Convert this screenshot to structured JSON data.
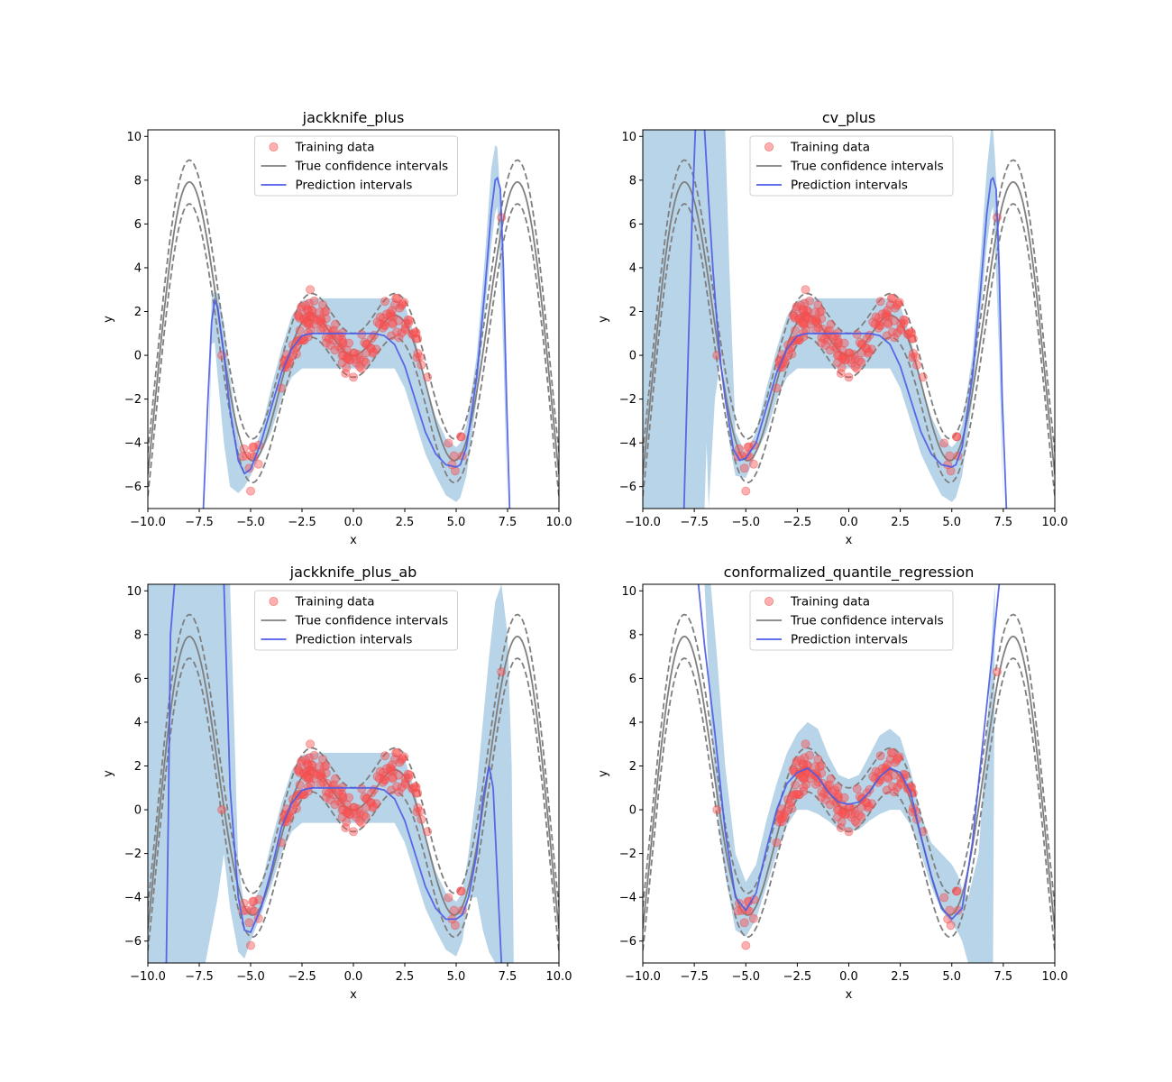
{
  "colors": {
    "band": "#b8d4e8",
    "true_line": "#7f7f7f",
    "prediction_line": "#4c5be6",
    "points": "#ff5050",
    "points_edge": "#e05050"
  },
  "legend_entries": [
    "Training data",
    "True confidence intervals",
    "Prediction intervals"
  ],
  "chart_data": [
    {
      "type": "line",
      "title": "jackknife_plus",
      "xlabel": "x",
      "ylabel": "y",
      "xlim": [
        -10,
        10
      ],
      "ylim": [
        -7,
        10.3
      ],
      "xticks": [
        "−10.0",
        "−7.5",
        "−5.0",
        "−2.5",
        "0.0",
        "2.5",
        "5.0",
        "7.5",
        "10.0"
      ],
      "yticks": [
        "−6",
        "−4",
        "−2",
        "0",
        "2",
        "4",
        "6",
        "8",
        "10"
      ],
      "legend_position": "upper-center",
      "series": [
        {
          "name": "Training data",
          "kind": "scatter",
          "x_range": [
            -6.4,
            7.3
          ],
          "outliers": [
            [
              -5.0,
              -6.2
            ],
            [
              -6.4,
              0.0
            ],
            [
              7.2,
              6.3
            ],
            [
              -2.1,
              3.0
            ],
            [
              0.0,
              -1.0
            ]
          ]
        },
        {
          "name": "True confidence intervals",
          "kind": "line",
          "function": "x*sin(x)",
          "offsets": [
            -1,
            0,
            1
          ]
        },
        {
          "name": "Prediction intervals",
          "kind": "line",
          "x": [
            -7.3,
            -7.1,
            -6.9,
            -6.75,
            -6.6,
            -6.3,
            -6.0,
            -5.6,
            -5.3,
            -5.0,
            -4.5,
            -4.0,
            -3.5,
            -3.0,
            -2.5,
            -2.0,
            -1.0,
            0.0,
            1.0,
            1.5,
            2.0,
            2.5,
            3.0,
            3.5,
            4.0,
            4.5,
            5.0,
            5.2,
            5.5,
            6.0,
            6.4,
            6.7,
            6.9,
            7.0,
            7.15,
            7.3,
            7.45,
            7.6
          ],
          "y": [
            -7.0,
            -2.5,
            1.5,
            2.5,
            2.2,
            0.0,
            -2.5,
            -4.8,
            -5.4,
            -5.2,
            -4.0,
            -2.4,
            -0.8,
            0.3,
            0.9,
            1.0,
            1.0,
            1.0,
            1.0,
            0.9,
            0.5,
            -0.5,
            -2.0,
            -3.5,
            -4.5,
            -5.0,
            -5.1,
            -5.0,
            -4.2,
            -1.0,
            3.0,
            6.5,
            8.0,
            8.1,
            7.6,
            4.0,
            -2.0,
            -7.0
          ]
        },
        {
          "name": "band",
          "kind": "area",
          "x": [
            -7.1,
            -6.9,
            -6.75,
            -6.6,
            -6.3,
            -6.0,
            -5.6,
            -5.3,
            -5.0,
            -4.5,
            -4.0,
            -3.5,
            -3.0,
            -2.5,
            -2.0,
            -1.0,
            0.0,
            1.0,
            2.0,
            2.5,
            3.0,
            3.5,
            4.0,
            4.5,
            5.0,
            5.2,
            5.5,
            6.0,
            6.4,
            6.7,
            6.9,
            7.0,
            7.1,
            7.3,
            7.5
          ],
          "lower": [
            -7.0,
            0.5,
            0.6,
            -1.0,
            -4.0,
            -6.0,
            -6.3,
            -6.0,
            -5.5,
            -4.5,
            -3.5,
            -2.0,
            -1.0,
            -0.6,
            -0.6,
            -0.6,
            -0.6,
            -0.6,
            -0.6,
            -1.5,
            -3.0,
            -4.5,
            -5.5,
            -6.4,
            -6.7,
            -6.5,
            -5.5,
            -2.0,
            2.0,
            5.0,
            6.5,
            6.8,
            5.0,
            0.0,
            -7.0
          ],
          "upper": [
            -7.0,
            2.6,
            3.0,
            2.8,
            1.5,
            -1.0,
            -3.8,
            -4.8,
            -4.8,
            -3.5,
            -1.5,
            0.3,
            1.8,
            2.5,
            2.6,
            2.6,
            2.6,
            2.6,
            2.6,
            2.3,
            0.8,
            -1.2,
            -2.8,
            -3.8,
            -4.2,
            -4.0,
            -3.2,
            0.0,
            4.5,
            8.5,
            9.6,
            9.5,
            8.0,
            5.0,
            -7.0
          ]
        }
      ]
    },
    {
      "type": "line",
      "title": "cv_plus",
      "xlabel": "x",
      "ylabel": "y",
      "xlim": [
        -10,
        10
      ],
      "ylim": [
        -7,
        10.3
      ],
      "xticks": [
        "−10.0",
        "−7.5",
        "−5.0",
        "−2.5",
        "0.0",
        "2.5",
        "5.0",
        "7.5",
        "10.0"
      ],
      "yticks": [
        "−6",
        "−4",
        "−2",
        "0",
        "2",
        "4",
        "6",
        "8",
        "10"
      ],
      "legend_position": "upper-center",
      "series": [
        {
          "name": "Training data",
          "kind": "scatter",
          "x_range": [
            -6.4,
            7.3
          ]
        },
        {
          "name": "True confidence intervals",
          "kind": "line",
          "function": "x*sin(x)",
          "offsets": [
            -1,
            0,
            1
          ]
        },
        {
          "name": "Prediction intervals",
          "kind": "line",
          "note_segments": 2,
          "x": [
            -8.0,
            -7.8,
            -7.6,
            -7.45,
            -7.3,
            -7.0,
            -6.8,
            -6.6,
            -6.4,
            -6.2,
            -6.0,
            -5.6,
            -5.3,
            -5.0,
            -4.5,
            -4.0,
            -3.5,
            -3.0,
            -2.5,
            -2.0,
            -1.0,
            0.0,
            1.0,
            1.5,
            2.0,
            2.5,
            3.0,
            3.5,
            4.0,
            4.5,
            5.0,
            5.2,
            5.5,
            6.0,
            6.4,
            6.7,
            6.9,
            7.0,
            7.15,
            7.3,
            7.45,
            7.65
          ],
          "y": [
            -7.0,
            0.0,
            6.5,
            10.3,
            null,
            10.3,
            7.0,
            4.0,
            1.5,
            -0.5,
            -2.0,
            -4.3,
            -4.8,
            -4.7,
            -4.0,
            -2.4,
            -0.8,
            0.3,
            0.9,
            1.0,
            1.0,
            1.0,
            1.0,
            0.9,
            0.5,
            -0.5,
            -2.0,
            -3.5,
            -4.5,
            -5.0,
            -5.1,
            -5.0,
            -4.2,
            -1.0,
            3.0,
            6.5,
            8.0,
            8.1,
            7.6,
            4.0,
            -2.0,
            -7.0
          ]
        },
        {
          "name": "band",
          "kind": "area",
          "x": [
            -10.0,
            -9.0,
            -8.5,
            -8.0,
            -7.5,
            -7.0,
            -6.9,
            -6.8,
            -6.5,
            -6.2,
            -6.0,
            -5.8,
            -5.5,
            -5.0,
            -4.5,
            -4.0,
            -3.5,
            -3.0,
            -2.5,
            -2.0,
            -1.0,
            0.0,
            1.0,
            2.0,
            2.5,
            3.0,
            3.5,
            4.0,
            4.5,
            5.0,
            5.2,
            5.5,
            6.0,
            6.4,
            6.7,
            6.9,
            7.0,
            7.1,
            7.3,
            7.5
          ],
          "lower": [
            -7.0,
            -7.0,
            -7.0,
            -7.0,
            -7.0,
            -7.0,
            -4.0,
            -7.0,
            -2.0,
            0.0,
            -1.5,
            -4.0,
            -5.5,
            -5.6,
            -4.5,
            -3.5,
            -2.0,
            -1.0,
            -0.6,
            -0.6,
            -0.6,
            -0.6,
            -0.6,
            -0.6,
            -1.5,
            -3.0,
            -4.5,
            -5.5,
            -6.4,
            -6.7,
            -6.5,
            -5.5,
            -2.0,
            2.0,
            5.0,
            6.5,
            6.8,
            5.0,
            0.0,
            -7.0
          ],
          "upper": [
            10.3,
            10.3,
            10.3,
            10.3,
            10.3,
            10.3,
            10.3,
            10.3,
            10.3,
            10.3,
            10.3,
            4.0,
            -3.5,
            -4.5,
            -3.5,
            -1.5,
            0.3,
            1.8,
            2.5,
            2.6,
            2.6,
            2.6,
            2.6,
            2.6,
            2.3,
            0.8,
            -1.2,
            -2.8,
            -3.8,
            -4.2,
            -4.0,
            -3.2,
            0.0,
            4.5,
            8.5,
            10.3,
            10.3,
            9.0,
            5.5,
            -7.0
          ]
        }
      ]
    },
    {
      "type": "line",
      "title": "jackknife_plus_ab",
      "xlabel": "x",
      "ylabel": "y",
      "xlim": [
        -10,
        10
      ],
      "ylim": [
        -7,
        10.3
      ],
      "xticks": [
        "−10.0",
        "−7.5",
        "−5.0",
        "−2.5",
        "0.0",
        "2.5",
        "5.0",
        "7.5",
        "10.0"
      ],
      "yticks": [
        "−6",
        "−4",
        "−2",
        "0",
        "2",
        "4",
        "6",
        "8",
        "10"
      ],
      "legend_position": "upper-center",
      "series": [
        {
          "name": "Training data",
          "kind": "scatter",
          "x_range": [
            -6.4,
            7.3
          ]
        },
        {
          "name": "True confidence intervals",
          "kind": "line",
          "function": "x*sin(x)",
          "offsets": [
            -1,
            0,
            1
          ]
        },
        {
          "name": "Prediction intervals",
          "kind": "line",
          "x": [
            -9.1,
            -9.0,
            -8.9,
            -8.7,
            null,
            -6.3,
            -6.0,
            -5.6,
            -5.3,
            -5.0,
            -4.5,
            -4.0,
            -3.5,
            -3.0,
            -2.5,
            -2.0,
            -1.0,
            0.0,
            1.0,
            1.5,
            2.0,
            2.5,
            3.0,
            3.5,
            4.0,
            4.5,
            5.0,
            5.3,
            5.6,
            6.0,
            6.3,
            6.6,
            6.8,
            7.0,
            7.2
          ],
          "y": [
            -7.0,
            0.0,
            8.0,
            10.3,
            null,
            10.3,
            1.0,
            -4.0,
            -5.5,
            -5.6,
            -4.5,
            -2.8,
            -0.8,
            0.3,
            0.9,
            1.0,
            1.0,
            1.0,
            1.0,
            0.9,
            0.5,
            -0.5,
            -2.0,
            -3.5,
            -4.5,
            -5.0,
            -5.0,
            -4.8,
            -4.0,
            -2.0,
            0.5,
            2.0,
            1.0,
            -3.0,
            -7.0
          ]
        },
        {
          "name": "band",
          "kind": "area",
          "x": [
            -10.0,
            -9.2,
            -9.0,
            -8.5,
            -8.0,
            -7.5,
            -7.2,
            -7.0,
            -6.6,
            -6.3,
            -6.0,
            -5.6,
            -5.3,
            -5.0,
            -4.5,
            -4.0,
            -3.5,
            -3.0,
            -2.5,
            -2.0,
            -1.0,
            0.0,
            1.0,
            2.0,
            2.5,
            3.0,
            3.5,
            4.0,
            4.5,
            5.0,
            5.3,
            5.6,
            6.0,
            6.3,
            6.6,
            6.9,
            7.2,
            7.5,
            7.7,
            7.8
          ],
          "lower": [
            -7.0,
            -7.0,
            -7.0,
            -7.0,
            -7.0,
            -7.0,
            -7.0,
            -6.0,
            -4.0,
            -2.0,
            -4.5,
            -6.5,
            -6.8,
            -6.0,
            -4.8,
            -3.5,
            -2.0,
            -1.0,
            -0.6,
            -0.6,
            -0.6,
            -0.6,
            -0.6,
            -0.6,
            -1.5,
            -3.0,
            -4.5,
            -5.5,
            -6.4,
            -6.7,
            -6.0,
            -4.0,
            -4.0,
            -5.5,
            -6.5,
            -7.0,
            -7.0,
            -7.0,
            -7.0,
            -7.0
          ],
          "upper": [
            10.3,
            10.3,
            10.3,
            10.3,
            10.3,
            10.3,
            10.3,
            10.3,
            10.3,
            10.3,
            10.3,
            -2.5,
            -4.5,
            -4.5,
            -3.5,
            -1.5,
            0.3,
            1.8,
            2.5,
            2.6,
            2.6,
            2.6,
            2.6,
            2.6,
            2.3,
            0.8,
            -1.2,
            -2.8,
            -3.8,
            -4.2,
            -3.8,
            -2.0,
            1.0,
            4.0,
            7.0,
            9.5,
            10.3,
            8.0,
            2.0,
            -7.0
          ]
        }
      ]
    },
    {
      "type": "line",
      "title": "conformalized_quantile_regression",
      "xlabel": "x",
      "ylabel": "y",
      "xlim": [
        -10,
        10
      ],
      "ylim": [
        -7,
        10.3
      ],
      "xticks": [
        "−10.0",
        "−7.5",
        "−5.0",
        "−2.5",
        "0.0",
        "2.5",
        "5.0",
        "7.5",
        "10.0"
      ],
      "yticks": [
        "−6",
        "−4",
        "−2",
        "0",
        "2",
        "4",
        "6",
        "8",
        "10"
      ],
      "legend_position": "upper-center",
      "series": [
        {
          "name": "Training data",
          "kind": "scatter",
          "x_range": [
            -6.4,
            7.3
          ]
        },
        {
          "name": "True confidence intervals",
          "kind": "line",
          "function": "x*sin(x)",
          "offsets": [
            -1,
            0,
            1
          ]
        },
        {
          "name": "Prediction intervals",
          "kind": "line",
          "x": [
            -7.3,
            -7.0,
            -6.5,
            -6.0,
            -5.5,
            -5.0,
            -4.5,
            -4.0,
            -3.5,
            -3.0,
            -2.5,
            -2.0,
            -1.5,
            -1.0,
            -0.5,
            0.0,
            0.5,
            1.0,
            1.5,
            2.0,
            2.5,
            3.0,
            3.5,
            4.0,
            4.5,
            5.0,
            5.5,
            6.0,
            6.5,
            7.0,
            7.3
          ],
          "y": [
            10.3,
            7.5,
            3.5,
            -1.0,
            -4.0,
            -4.6,
            -3.8,
            -1.8,
            0.0,
            1.2,
            1.7,
            1.9,
            1.5,
            0.8,
            0.35,
            0.25,
            0.35,
            0.8,
            1.5,
            1.9,
            1.7,
            0.8,
            -1.2,
            -3.0,
            -4.5,
            -5.0,
            -4.5,
            -1.5,
            3.0,
            7.5,
            10.3
          ]
        },
        {
          "name": "band",
          "kind": "area",
          "x": [
            -7.0,
            -6.7,
            -6.4,
            -6.0,
            -5.5,
            -5.0,
            -4.5,
            -4.0,
            -3.5,
            -3.0,
            -2.5,
            -2.0,
            -1.5,
            -1.0,
            -0.5,
            0.0,
            0.5,
            1.0,
            1.5,
            2.0,
            2.5,
            3.0,
            3.5,
            4.0,
            4.5,
            5.0,
            5.3,
            5.5,
            5.8,
            6.3,
            6.8,
            7.0,
            7.1
          ],
          "lower": [
            10.3,
            4.0,
            0.0,
            -3.0,
            -5.5,
            -5.8,
            -5.0,
            -3.5,
            -2.0,
            -0.7,
            0.0,
            0.0,
            -0.2,
            -0.5,
            -0.9,
            -1.0,
            -0.9,
            -0.5,
            -0.2,
            0.0,
            0.0,
            -0.7,
            -2.0,
            -3.5,
            -4.6,
            -5.2,
            -5.6,
            -6.0,
            -7.0,
            -7.0,
            -7.0,
            -7.0,
            10.3
          ],
          "upper": [
            10.3,
            10.3,
            7.0,
            2.0,
            -2.0,
            -3.3,
            -2.5,
            -0.5,
            1.2,
            2.6,
            3.5,
            4.0,
            3.7,
            2.5,
            1.6,
            1.4,
            1.6,
            2.5,
            3.4,
            3.7,
            3.3,
            1.8,
            -0.2,
            -1.5,
            -2.0,
            -2.5,
            -3.0,
            -3.6,
            -4.0,
            -2.0,
            5.0,
            9.0,
            10.3
          ]
        }
      ]
    }
  ]
}
